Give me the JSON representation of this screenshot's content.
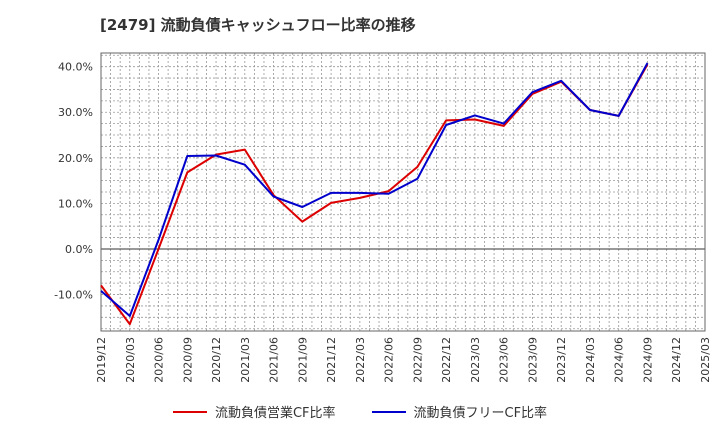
{
  "chart_data": {
    "type": "line",
    "title": "[2479]  流動負債キャッシュフロー比率の推移",
    "xlabel": "",
    "ylabel": "",
    "ylim": [
      -18,
      43
    ],
    "yticks": [
      -10,
      0,
      10,
      20,
      30,
      40
    ],
    "ytick_labels": [
      "-10.0%",
      "0.0%",
      "10.0%",
      "20.0%",
      "30.0%",
      "40.0%"
    ],
    "grid": true,
    "legend_position": "bottom",
    "x": [
      "2019/12",
      "2020/03",
      "2020/06",
      "2020/09",
      "2020/12",
      "2021/03",
      "2021/06",
      "2021/09",
      "2021/12",
      "2022/03",
      "2022/06",
      "2022/09",
      "2022/12",
      "2023/03",
      "2023/06",
      "2023/09",
      "2023/12",
      "2024/03",
      "2024/06",
      "2024/09",
      "2024/12",
      "2025/03"
    ],
    "series": [
      {
        "name": "流動負債営業CF比率",
        "color": "#dd0000",
        "values": [
          -8.0,
          -16.5,
          0.0,
          16.8,
          20.7,
          21.8,
          11.8,
          6.0,
          10.1,
          11.2,
          12.7,
          18.0,
          28.2,
          28.4,
          27.0,
          34.0,
          36.7,
          30.5,
          29.2,
          40.5,
          null,
          null
        ]
      },
      {
        "name": "流動負債フリーCF比率",
        "color": "#0000cc",
        "values": [
          -9.2,
          -14.7,
          2.0,
          20.4,
          20.5,
          18.5,
          11.5,
          9.2,
          12.3,
          12.3,
          12.1,
          15.4,
          27.2,
          29.3,
          27.5,
          34.4,
          36.9,
          30.5,
          29.2,
          40.8,
          null,
          null
        ]
      }
    ]
  }
}
